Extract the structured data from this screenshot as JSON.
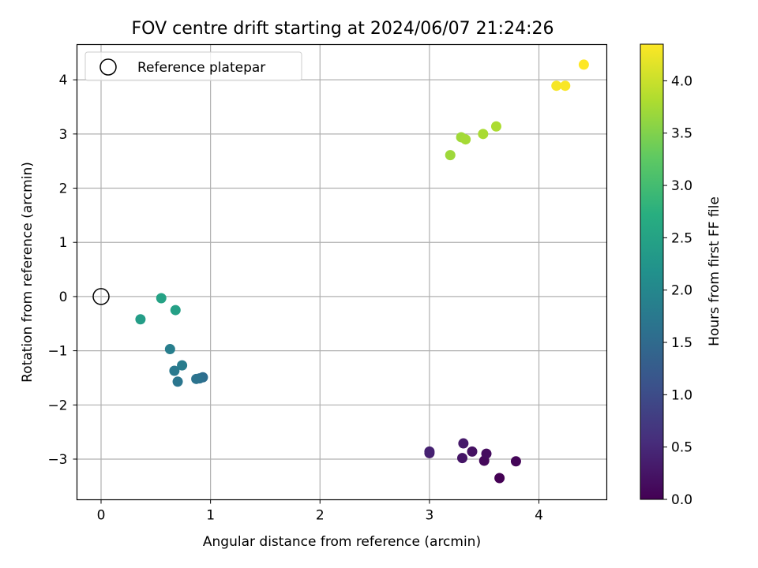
{
  "chart_data": {
    "type": "scatter",
    "title": "FOV centre drift starting at 2024/06/07 21:24:26",
    "xlabel": "Angular distance from reference (arcmin)",
    "ylabel": "Rotation from reference (arcmin)",
    "xlim": [
      -0.22,
      4.62
    ],
    "ylim": [
      -3.75,
      4.65
    ],
    "xticks": [
      0,
      1,
      2,
      3,
      4
    ],
    "yticks": [
      -3,
      -2,
      -1,
      0,
      1,
      2,
      3,
      4
    ],
    "grid": true,
    "legend": {
      "placement": "top-left",
      "entries": [
        "Reference platepar"
      ]
    },
    "reference_point": {
      "x": 0,
      "y": 0,
      "marker": "open-circle"
    },
    "colorbar": {
      "label": "Hours from first FF file",
      "colormap": "viridis",
      "range": [
        0.0,
        4.35
      ],
      "ticks": [
        0.0,
        0.5,
        1.0,
        1.5,
        2.0,
        2.5,
        3.0,
        3.5,
        4.0
      ]
    },
    "points": [
      {
        "x": 3.64,
        "y": -3.35,
        "hours": 0.0
      },
      {
        "x": 3.79,
        "y": -3.04,
        "hours": 0.05
      },
      {
        "x": 3.5,
        "y": -3.03,
        "hours": 0.1
      },
      {
        "x": 3.52,
        "y": -2.9,
        "hours": 0.15
      },
      {
        "x": 3.39,
        "y": -2.86,
        "hours": 0.2
      },
      {
        "x": 3.3,
        "y": -2.98,
        "hours": 0.25
      },
      {
        "x": 3.31,
        "y": -2.71,
        "hours": 0.3
      },
      {
        "x": 3.0,
        "y": -2.89,
        "hours": 0.35
      },
      {
        "x": 3.0,
        "y": -2.86,
        "hours": 0.4
      },
      {
        "x": 0.93,
        "y": -1.49,
        "hours": 1.55
      },
      {
        "x": 0.9,
        "y": -1.51,
        "hours": 1.6
      },
      {
        "x": 0.87,
        "y": -1.52,
        "hours": 1.65
      },
      {
        "x": 0.7,
        "y": -1.57,
        "hours": 1.7
      },
      {
        "x": 0.67,
        "y": -1.37,
        "hours": 1.75
      },
      {
        "x": 0.74,
        "y": -1.27,
        "hours": 1.8
      },
      {
        "x": 0.63,
        "y": -0.97,
        "hours": 1.85
      },
      {
        "x": 0.36,
        "y": -0.42,
        "hours": 2.4
      },
      {
        "x": 0.68,
        "y": -0.25,
        "hours": 2.45
      },
      {
        "x": 0.55,
        "y": -0.03,
        "hours": 2.5
      },
      {
        "x": 3.19,
        "y": 2.61,
        "hours": 3.7
      },
      {
        "x": 3.29,
        "y": 2.94,
        "hours": 3.72
      },
      {
        "x": 3.33,
        "y": 2.9,
        "hours": 3.75
      },
      {
        "x": 3.49,
        "y": 3.0,
        "hours": 3.78
      },
      {
        "x": 3.61,
        "y": 3.14,
        "hours": 3.8
      },
      {
        "x": 4.16,
        "y": 3.89,
        "hours": 4.3
      },
      {
        "x": 4.24,
        "y": 3.89,
        "hours": 4.32
      },
      {
        "x": 4.41,
        "y": 4.28,
        "hours": 4.35
      }
    ]
  }
}
